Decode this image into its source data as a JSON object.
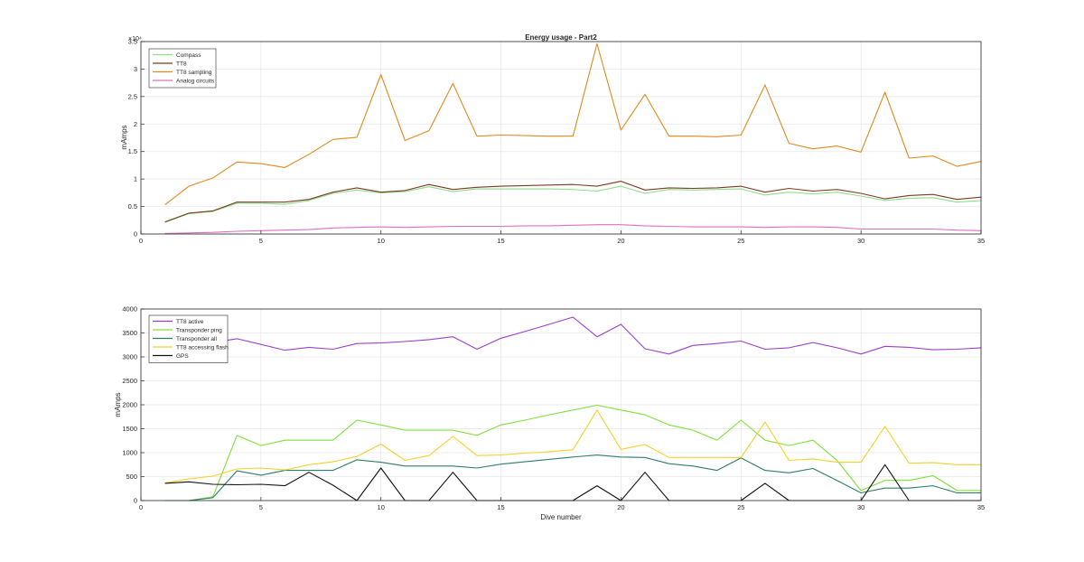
{
  "chart_data": [
    {
      "type": "line",
      "title": "Energy usage - Part2",
      "xlabel": "",
      "ylabel": "mAmps",
      "xlim": [
        0,
        35
      ],
      "ylim": [
        0,
        35000
      ],
      "y_exponent_label": "×10⁴",
      "xticks": [
        0,
        5,
        10,
        15,
        20,
        25,
        30,
        35
      ],
      "yticks": [
        0,
        5000,
        10000,
        15000,
        20000,
        25000,
        30000,
        35000
      ],
      "ytick_labels": [
        "0",
        "0.5",
        "1",
        "1.5",
        "2",
        "2.5",
        "3",
        "3.5"
      ],
      "grid": true,
      "legend_position": "top-left",
      "x": [
        1,
        2,
        3,
        4,
        5,
        6,
        7,
        8,
        9,
        10,
        11,
        12,
        13,
        14,
        15,
        16,
        17,
        18,
        19,
        20,
        21,
        22,
        23,
        24,
        25,
        26,
        27,
        28,
        29,
        30,
        31,
        32,
        33,
        34,
        35
      ],
      "series": [
        {
          "name": "Compass",
          "color": "#8fdc8f",
          "values": [
            2100,
            3700,
            4100,
            5600,
            5600,
            5400,
            6100,
            7400,
            8000,
            7500,
            7700,
            8600,
            7700,
            8200,
            8200,
            8200,
            8200,
            8100,
            7800,
            8700,
            7400,
            8100,
            8000,
            8100,
            8200,
            7100,
            7600,
            7300,
            7600,
            6900,
            6100,
            6500,
            6600,
            5800,
            6100
          ]
        },
        {
          "name": "TT8",
          "color": "#7a3b1f",
          "values": [
            2200,
            3800,
            4200,
            5800,
            5800,
            5800,
            6300,
            7600,
            8400,
            7600,
            7900,
            9000,
            8100,
            8500,
            8700,
            8800,
            8900,
            9000,
            8700,
            9600,
            8000,
            8400,
            8300,
            8400,
            8700,
            7600,
            8300,
            7800,
            8100,
            7400,
            6400,
            7000,
            7200,
            6300,
            6700
          ]
        },
        {
          "name": "TT8 sampling",
          "color": "#e08a1e",
          "values": [
            5300,
            8700,
            10200,
            13100,
            12800,
            12100,
            14500,
            17200,
            17600,
            29000,
            17000,
            18800,
            27400,
            17800,
            18000,
            17900,
            17800,
            17800,
            34600,
            18900,
            25400,
            17800,
            17800,
            17700,
            18000,
            27100,
            16500,
            15500,
            16000,
            14900,
            25800,
            13800,
            14200,
            12300,
            13200
          ]
        },
        {
          "name": "Analog circuits",
          "color": "#e06ec2",
          "values": [
            100,
            200,
            300,
            500,
            600,
            700,
            800,
            1100,
            1200,
            1300,
            1200,
            1300,
            1400,
            1400,
            1400,
            1500,
            1500,
            1600,
            1700,
            1700,
            1500,
            1400,
            1300,
            1300,
            1300,
            1200,
            1300,
            1300,
            1200,
            900,
            900,
            900,
            900,
            700,
            600
          ]
        }
      ]
    },
    {
      "type": "line",
      "title": "",
      "xlabel": "Dive number",
      "ylabel": "mAmps",
      "xlim": [
        0,
        35
      ],
      "ylim": [
        0,
        4000
      ],
      "xticks": [
        0,
        5,
        10,
        15,
        20,
        25,
        30,
        35
      ],
      "yticks": [
        0,
        500,
        1000,
        1500,
        2000,
        2500,
        3000,
        3500,
        4000
      ],
      "ytick_labels": [
        "0",
        "500",
        "1000",
        "1500",
        "2000",
        "2500",
        "3000",
        "3500",
        "4000"
      ],
      "grid": true,
      "legend_position": "top-left",
      "x": [
        1,
        2,
        3,
        4,
        5,
        6,
        7,
        8,
        9,
        10,
        11,
        12,
        13,
        14,
        15,
        16,
        17,
        18,
        19,
        20,
        21,
        22,
        23,
        24,
        25,
        26,
        27,
        28,
        29,
        30,
        31,
        32,
        33,
        34,
        35
      ],
      "series": [
        {
          "name": "TT8 active",
          "color": "#9b3fc9",
          "values": [
            2950,
            3050,
            3300,
            3380,
            3260,
            3140,
            3200,
            3160,
            3280,
            3290,
            3320,
            3360,
            3420,
            3160,
            3390,
            3530,
            3680,
            3830,
            3420,
            3680,
            3170,
            3060,
            3240,
            3280,
            3330,
            3160,
            3190,
            3300,
            3190,
            3060,
            3220,
            3200,
            3150,
            3160,
            3190
          ]
        },
        {
          "name": "Transponder ping",
          "color": "#7fe03a",
          "values": [
            0,
            0,
            80,
            1360,
            1150,
            1260,
            1260,
            1260,
            1680,
            1580,
            1470,
            1470,
            1470,
            1360,
            1580,
            1680,
            1790,
            1890,
            1990,
            1890,
            1790,
            1580,
            1470,
            1260,
            1680,
            1260,
            1150,
            1260,
            840,
            210,
            420,
            420,
            520,
            210,
            210
          ]
        },
        {
          "name": "Transponder all",
          "color": "#2e7d6b",
          "values": [
            0,
            0,
            60,
            620,
            530,
            630,
            630,
            630,
            850,
            800,
            720,
            720,
            720,
            680,
            760,
            810,
            860,
            910,
            950,
            910,
            900,
            770,
            720,
            630,
            890,
            630,
            580,
            670,
            420,
            160,
            260,
            260,
            310,
            160,
            160
          ]
        },
        {
          "name": "TT8 accessing flash",
          "color": "#f5d02b",
          "values": [
            370,
            450,
            510,
            660,
            680,
            640,
            750,
            810,
            920,
            1180,
            840,
            940,
            1340,
            940,
            950,
            990,
            1020,
            1060,
            1890,
            1070,
            1170,
            900,
            900,
            900,
            900,
            1640,
            840,
            870,
            800,
            800,
            1550,
            780,
            790,
            750,
            750
          ]
        },
        {
          "name": "GPS",
          "color": "#111111",
          "values": [
            360,
            390,
            340,
            330,
            340,
            310,
            590,
            320,
            0,
            680,
            0,
            0,
            590,
            0,
            0,
            0,
            0,
            0,
            310,
            0,
            590,
            0,
            0,
            0,
            0,
            360,
            0,
            0,
            0,
            0,
            750,
            0,
            0,
            0,
            0
          ]
        }
      ]
    }
  ]
}
